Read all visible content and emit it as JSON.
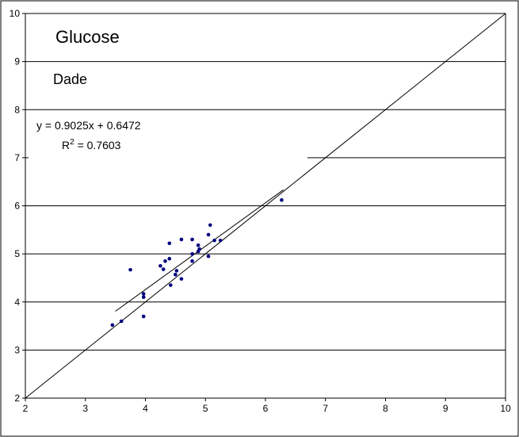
{
  "chart_data": {
    "type": "scatter",
    "title": "Glucose",
    "subtitle": "Dade",
    "xlabel": "",
    "ylabel": "",
    "xlim": [
      2,
      10
    ],
    "ylim": [
      2,
      10
    ],
    "xticks": [
      "2",
      "3",
      "4",
      "5",
      "6",
      "7",
      "8",
      "9",
      "10"
    ],
    "yticks": [
      "2",
      "3",
      "4",
      "5",
      "6",
      "7",
      "8",
      "9",
      "10"
    ],
    "grid": "horizontal",
    "equation": "y = 0.9025x + 0.6472",
    "r2_label": "R",
    "r2_sup": "2",
    "r2_value": " = 0.7603",
    "marker_color": "#00007f",
    "identity_line": {
      "x": [
        2,
        10
      ],
      "y": [
        2,
        10
      ]
    },
    "trendline": {
      "slope": 0.9025,
      "intercept": 0.6472,
      "x_range": [
        3.5,
        6.3
      ]
    },
    "points": [
      [
        3.45,
        3.52
      ],
      [
        3.6,
        3.6
      ],
      [
        3.75,
        4.67
      ],
      [
        3.97,
        3.7
      ],
      [
        3.97,
        4.1
      ],
      [
        3.97,
        4.17
      ],
      [
        4.25,
        4.75
      ],
      [
        4.3,
        4.68
      ],
      [
        4.33,
        4.85
      ],
      [
        4.4,
        4.9
      ],
      [
        4.4,
        5.22
      ],
      [
        4.42,
        4.35
      ],
      [
        4.5,
        4.57
      ],
      [
        4.52,
        4.65
      ],
      [
        4.6,
        4.48
      ],
      [
        4.6,
        5.3
      ],
      [
        4.78,
        4.85
      ],
      [
        4.78,
        5.0
      ],
      [
        4.78,
        5.3
      ],
      [
        4.88,
        5.05
      ],
      [
        4.88,
        5.18
      ],
      [
        4.9,
        5.1
      ],
      [
        5.05,
        4.95
      ],
      [
        5.05,
        5.4
      ],
      [
        5.08,
        5.6
      ],
      [
        5.15,
        5.28
      ],
      [
        5.25,
        5.28
      ],
      [
        6.27,
        6.12
      ]
    ]
  }
}
